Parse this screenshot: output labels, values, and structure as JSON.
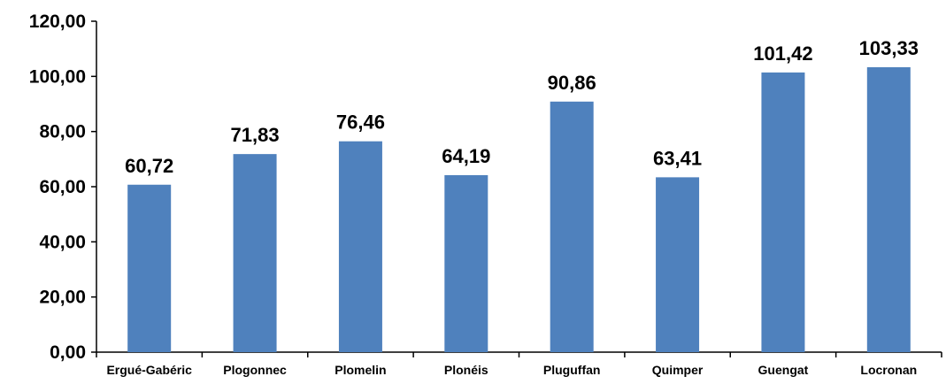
{
  "chart_data": {
    "type": "bar",
    "categories": [
      "Ergué-Gabéric",
      "Plogonnec",
      "Plomelin",
      "Plonéis",
      "Pluguffan",
      "Quimper",
      "Guengat",
      "Locronan"
    ],
    "values": [
      60.72,
      71.83,
      76.46,
      64.19,
      90.86,
      63.41,
      101.42,
      103.33
    ],
    "value_labels": [
      "60,72",
      "71,83",
      "76,46",
      "64,19",
      "90,86",
      "63,41",
      "101,42",
      "103,33"
    ],
    "y_ticks": [
      0,
      20,
      40,
      60,
      80,
      100,
      120
    ],
    "y_tick_labels": [
      "0,00",
      "20,00",
      "40,00",
      "60,00",
      "80,00",
      "100,00",
      "120,00"
    ],
    "ylim": [
      0,
      120
    ],
    "title": "",
    "xlabel": "",
    "ylabel": "",
    "grid": false,
    "legend": "none",
    "bar_color": "#4f81bd",
    "axis_color": "#000000"
  }
}
